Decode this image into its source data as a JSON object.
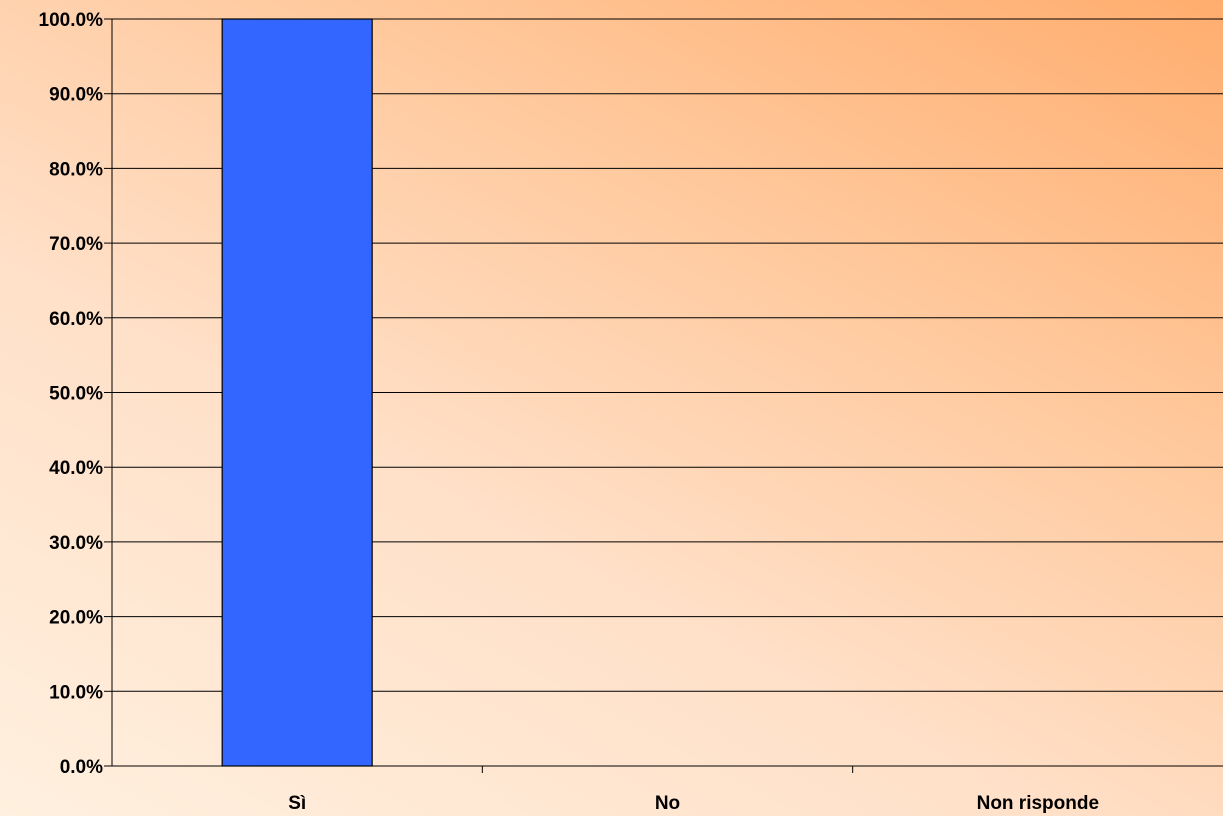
{
  "chart_data": {
    "type": "bar",
    "title": "",
    "xlabel": "",
    "ylabel": "",
    "categories": [
      "Sì",
      "No",
      "Non risponde"
    ],
    "values": [
      100.0,
      0.0,
      0.0
    ],
    "ylim": [
      0,
      100
    ],
    "yticks": [
      0,
      10,
      20,
      30,
      40,
      50,
      60,
      70,
      80,
      90,
      100
    ],
    "ytick_labels": [
      "0.0%",
      "10.0%",
      "20.0%",
      "30.0%",
      "40.0%",
      "50.0%",
      "60.0%",
      "70.0%",
      "80.0%",
      "90.0%",
      "100.0%"
    ],
    "grid": true,
    "legend": "none",
    "bar_color": "#3366ff",
    "background": "gradient-orange"
  }
}
